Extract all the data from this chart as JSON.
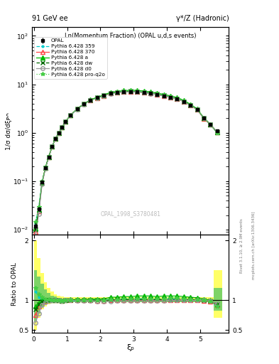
{
  "title_left": "91 GeV ee",
  "title_right": "γ*/Z (Hadronic)",
  "plot_title": "Ln(Momentum Fraction) (OPAL u,d,s events)",
  "ylabel_main": "1/σ dσ/dξᴘᴖ",
  "ylabel_ratio": "Ratio to OPAL",
  "xlabel": "ξₚ",
  "watermark": "OPAL_1998_S3780481",
  "right_label": "mcplots.cern.ch [arXiv:1306.3436]",
  "right_label2": "Rivet 3.1.10, ≥ 2.9M events",
  "xi_p": [
    0.05,
    0.15,
    0.25,
    0.35,
    0.45,
    0.55,
    0.65,
    0.75,
    0.85,
    0.95,
    1.1,
    1.3,
    1.5,
    1.7,
    1.9,
    2.1,
    2.3,
    2.5,
    2.7,
    2.9,
    3.1,
    3.3,
    3.5,
    3.7,
    3.9,
    4.1,
    4.3,
    4.5,
    4.7,
    4.9,
    5.1,
    5.3,
    5.5
  ],
  "opal_y": [
    0.012,
    0.027,
    0.095,
    0.19,
    0.32,
    0.52,
    0.75,
    1.0,
    1.3,
    1.7,
    2.3,
    3.1,
    3.9,
    4.7,
    5.3,
    5.9,
    6.5,
    6.8,
    7.0,
    7.1,
    7.0,
    6.8,
    6.5,
    6.2,
    5.8,
    5.4,
    5.0,
    4.4,
    3.7,
    3.0,
    2.0,
    1.5,
    1.1
  ],
  "opal_err": [
    0.002,
    0.003,
    0.005,
    0.008,
    0.01,
    0.015,
    0.02,
    0.03,
    0.04,
    0.05,
    0.06,
    0.08,
    0.1,
    0.12,
    0.13,
    0.14,
    0.15,
    0.16,
    0.17,
    0.17,
    0.17,
    0.16,
    0.15,
    0.14,
    0.13,
    0.12,
    0.11,
    0.1,
    0.09,
    0.08,
    0.07,
    0.06,
    0.05
  ],
  "pythia_359_ratio": [
    1.15,
    1.05,
    1.02,
    1.0,
    1.0,
    1.0,
    1.0,
    1.0,
    0.98,
    0.99,
    0.99,
    0.99,
    1.0,
    1.0,
    1.0,
    1.0,
    1.02,
    1.02,
    1.02,
    1.01,
    1.02,
    1.03,
    1.02,
    1.01,
    1.02,
    1.02,
    1.02,
    1.01,
    1.01,
    1.01,
    1.0,
    0.98,
    0.9
  ],
  "pythia_370_ratio": [
    0.75,
    0.9,
    0.97,
    0.99,
    1.0,
    1.0,
    1.0,
    1.0,
    0.99,
    1.0,
    1.0,
    1.0,
    1.0,
    1.0,
    0.99,
    0.99,
    1.0,
    1.0,
    1.0,
    1.0,
    1.0,
    1.0,
    1.0,
    1.0,
    1.0,
    1.0,
    1.0,
    1.0,
    1.0,
    1.0,
    0.99,
    0.98,
    0.92
  ],
  "pythia_a_ratio": [
    0.9,
    0.95,
    0.99,
    1.0,
    1.0,
    1.0,
    1.0,
    1.0,
    0.99,
    1.0,
    1.01,
    1.01,
    1.01,
    1.02,
    1.02,
    1.02,
    1.05,
    1.05,
    1.06,
    1.06,
    1.07,
    1.07,
    1.07,
    1.06,
    1.07,
    1.07,
    1.07,
    1.06,
    1.05,
    1.04,
    1.02,
    1.0,
    0.93
  ],
  "pythia_dw_ratio": [
    0.85,
    0.93,
    0.98,
    1.0,
    1.0,
    1.0,
    1.0,
    1.0,
    0.99,
    1.0,
    1.0,
    1.0,
    1.0,
    1.0,
    1.0,
    1.0,
    1.0,
    1.01,
    1.01,
    1.01,
    1.01,
    1.01,
    1.01,
    1.01,
    1.01,
    1.01,
    1.01,
    1.01,
    1.01,
    1.01,
    1.0,
    0.99,
    0.93
  ],
  "pythia_d0_ratio": [
    0.62,
    0.78,
    0.92,
    0.97,
    0.99,
    1.0,
    1.0,
    1.0,
    0.99,
    1.0,
    1.0,
    0.99,
    0.99,
    0.99,
    0.98,
    0.98,
    0.98,
    0.99,
    0.99,
    0.99,
    0.99,
    0.99,
    0.99,
    0.99,
    0.99,
    1.0,
    1.0,
    1.0,
    1.0,
    1.0,
    1.0,
    0.99,
    0.94
  ],
  "pythia_proq2o_ratio": [
    1.2,
    1.1,
    1.05,
    1.02,
    1.01,
    1.0,
    1.0,
    1.0,
    0.99,
    1.0,
    1.0,
    1.0,
    1.0,
    1.0,
    1.0,
    1.0,
    1.01,
    1.02,
    1.03,
    1.03,
    1.03,
    1.03,
    1.03,
    1.03,
    1.03,
    1.04,
    1.04,
    1.03,
    1.02,
    1.01,
    1.0,
    0.98,
    0.9
  ],
  "yellow_band_lo": [
    0.5,
    0.7,
    0.85,
    0.9,
    0.93,
    0.95,
    0.96,
    0.97,
    0.97,
    0.97,
    0.97,
    0.97,
    0.97,
    0.97,
    0.97,
    0.97,
    0.97,
    0.97,
    0.97,
    0.97,
    0.97,
    0.97,
    0.97,
    0.97,
    0.97,
    0.97,
    0.97,
    0.97,
    0.97,
    0.97,
    0.97,
    0.97,
    0.7
  ],
  "yellow_band_hi": [
    2.0,
    1.7,
    1.45,
    1.3,
    1.2,
    1.15,
    1.1,
    1.08,
    1.06,
    1.05,
    1.05,
    1.05,
    1.05,
    1.05,
    1.05,
    1.05,
    1.05,
    1.05,
    1.05,
    1.05,
    1.05,
    1.05,
    1.05,
    1.05,
    1.05,
    1.05,
    1.05,
    1.05,
    1.05,
    1.05,
    1.05,
    1.05,
    1.5
  ],
  "green_band_lo": [
    0.65,
    0.78,
    0.88,
    0.93,
    0.95,
    0.96,
    0.97,
    0.97,
    0.97,
    0.97,
    0.97,
    0.97,
    0.97,
    0.97,
    0.97,
    0.97,
    0.97,
    0.97,
    0.97,
    0.97,
    0.97,
    0.97,
    0.97,
    0.97,
    0.97,
    0.97,
    0.97,
    0.97,
    0.97,
    0.97,
    0.97,
    0.97,
    0.82
  ],
  "green_band_hi": [
    1.5,
    1.4,
    1.28,
    1.18,
    1.12,
    1.08,
    1.06,
    1.04,
    1.03,
    1.02,
    1.02,
    1.02,
    1.02,
    1.02,
    1.02,
    1.02,
    1.02,
    1.02,
    1.02,
    1.02,
    1.02,
    1.02,
    1.02,
    1.02,
    1.02,
    1.02,
    1.02,
    1.02,
    1.02,
    1.02,
    1.02,
    1.02,
    1.2
  ],
  "color_359": "#00cccc",
  "color_370": "#ff4444",
  "color_a": "#00bb00",
  "color_dw": "#006600",
  "color_d0": "#999999",
  "color_proq2o": "#44cc44",
  "color_opal": "#000000",
  "ylim_main": [
    0.008,
    150
  ],
  "ylim_ratio": [
    0.45,
    2.1
  ],
  "xlim": [
    -0.05,
    5.85
  ]
}
